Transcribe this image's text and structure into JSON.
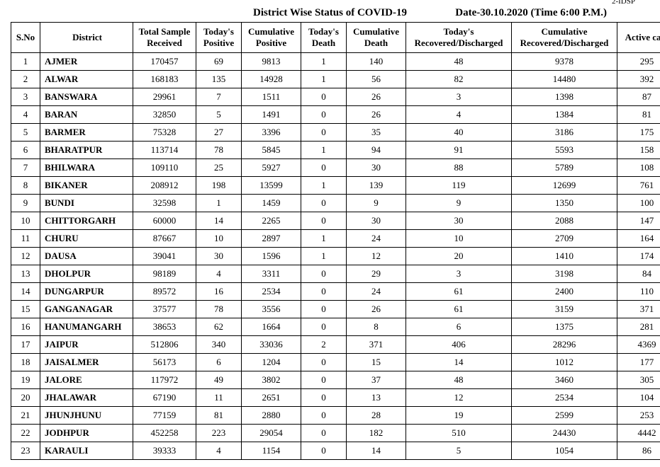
{
  "header": {
    "code": "2-IDSP",
    "title": "District Wise Status of  COVID-19",
    "date": "Date-30.10.2020 (Time 6:00 P.M.)"
  },
  "columns": {
    "sno": "S.No",
    "district": "District",
    "sample": "Total Sample Received",
    "tpos": "Today's Positive",
    "cpos": "Cumulative Positive",
    "tdth": "Today's Death",
    "cdth": "Cumulative Death",
    "trec": "Today's Recovered/Discharged",
    "crec": "Cumulative Recovered/Discharged",
    "act": "Active  case"
  },
  "rows": [
    {
      "sno": "1",
      "district": "AJMER",
      "sample": "170457",
      "tpos": "69",
      "cpos": "9813",
      "tdth": "1",
      "cdth": "140",
      "trec": "48",
      "crec": "9378",
      "act": "295"
    },
    {
      "sno": "2",
      "district": "ALWAR",
      "sample": "168183",
      "tpos": "135",
      "cpos": "14928",
      "tdth": "1",
      "cdth": "56",
      "trec": "82",
      "crec": "14480",
      "act": "392"
    },
    {
      "sno": "3",
      "district": "BANSWARA",
      "sample": "29961",
      "tpos": "7",
      "cpos": "1511",
      "tdth": "0",
      "cdth": "26",
      "trec": "3",
      "crec": "1398",
      "act": "87"
    },
    {
      "sno": "4",
      "district": "BARAN",
      "sample": "32850",
      "tpos": "5",
      "cpos": "1491",
      "tdth": "0",
      "cdth": "26",
      "trec": "4",
      "crec": "1384",
      "act": "81"
    },
    {
      "sno": "5",
      "district": "BARMER",
      "sample": "75328",
      "tpos": "27",
      "cpos": "3396",
      "tdth": "0",
      "cdth": "35",
      "trec": "40",
      "crec": "3186",
      "act": "175"
    },
    {
      "sno": "6",
      "district": "BHARATPUR",
      "sample": "113714",
      "tpos": "78",
      "cpos": "5845",
      "tdth": "1",
      "cdth": "94",
      "trec": "91",
      "crec": "5593",
      "act": "158"
    },
    {
      "sno": "7",
      "district": "BHILWARA",
      "sample": "109110",
      "tpos": "25",
      "cpos": "5927",
      "tdth": "0",
      "cdth": "30",
      "trec": "88",
      "crec": "5789",
      "act": "108"
    },
    {
      "sno": "8",
      "district": "BIKANER",
      "sample": "208912",
      "tpos": "198",
      "cpos": "13599",
      "tdth": "1",
      "cdth": "139",
      "trec": "119",
      "crec": "12699",
      "act": "761"
    },
    {
      "sno": "9",
      "district": "BUNDI",
      "sample": "32598",
      "tpos": "1",
      "cpos": "1459",
      "tdth": "0",
      "cdth": "9",
      "trec": "9",
      "crec": "1350",
      "act": "100"
    },
    {
      "sno": "10",
      "district": "CHITTORGARH",
      "sample": "60000",
      "tpos": "14",
      "cpos": "2265",
      "tdth": "0",
      "cdth": "30",
      "trec": "30",
      "crec": "2088",
      "act": "147"
    },
    {
      "sno": "11",
      "district": "CHURU",
      "sample": "87667",
      "tpos": "10",
      "cpos": "2897",
      "tdth": "1",
      "cdth": "24",
      "trec": "10",
      "crec": "2709",
      "act": "164"
    },
    {
      "sno": "12",
      "district": "DAUSA",
      "sample": "39041",
      "tpos": "30",
      "cpos": "1596",
      "tdth": "1",
      "cdth": "12",
      "trec": "20",
      "crec": "1410",
      "act": "174"
    },
    {
      "sno": "13",
      "district": "DHOLPUR",
      "sample": "98189",
      "tpos": "4",
      "cpos": "3311",
      "tdth": "0",
      "cdth": "29",
      "trec": "3",
      "crec": "3198",
      "act": "84"
    },
    {
      "sno": "14",
      "district": "DUNGARPUR",
      "sample": "89572",
      "tpos": "16",
      "cpos": "2534",
      "tdth": "0",
      "cdth": "24",
      "trec": "61",
      "crec": "2400",
      "act": "110"
    },
    {
      "sno": "15",
      "district": "GANGANAGAR",
      "sample": "37577",
      "tpos": "78",
      "cpos": "3556",
      "tdth": "0",
      "cdth": "26",
      "trec": "61",
      "crec": "3159",
      "act": "371"
    },
    {
      "sno": "16",
      "district": "HANUMANGARH",
      "sample": "38653",
      "tpos": "62",
      "cpos": "1664",
      "tdth": "0",
      "cdth": "8",
      "trec": "6",
      "crec": "1375",
      "act": "281"
    },
    {
      "sno": "17",
      "district": "JAIPUR",
      "sample": "512806",
      "tpos": "340",
      "cpos": "33036",
      "tdth": "2",
      "cdth": "371",
      "trec": "406",
      "crec": "28296",
      "act": "4369"
    },
    {
      "sno": "18",
      "district": "JAISALMER",
      "sample": "56173",
      "tpos": "6",
      "cpos": "1204",
      "tdth": "0",
      "cdth": "15",
      "trec": "14",
      "crec": "1012",
      "act": "177"
    },
    {
      "sno": "19",
      "district": "JALORE",
      "sample": "117972",
      "tpos": "49",
      "cpos": "3802",
      "tdth": "0",
      "cdth": "37",
      "trec": "48",
      "crec": "3460",
      "act": "305"
    },
    {
      "sno": "20",
      "district": "JHALAWAR",
      "sample": "67190",
      "tpos": "11",
      "cpos": "2651",
      "tdth": "0",
      "cdth": "13",
      "trec": "12",
      "crec": "2534",
      "act": "104"
    },
    {
      "sno": "21",
      "district": "JHUNJHUNU",
      "sample": "77159",
      "tpos": "81",
      "cpos": "2880",
      "tdth": "0",
      "cdth": "28",
      "trec": "19",
      "crec": "2599",
      "act": "253"
    },
    {
      "sno": "22",
      "district": "JODHPUR",
      "sample": "452258",
      "tpos": "223",
      "cpos": "29054",
      "tdth": "0",
      "cdth": "182",
      "trec": "510",
      "crec": "24430",
      "act": "4442"
    },
    {
      "sno": "23",
      "district": "KARAULI",
      "sample": "39333",
      "tpos": "4",
      "cpos": "1154",
      "tdth": "0",
      "cdth": "14",
      "trec": "5",
      "crec": "1054",
      "act": "86"
    }
  ]
}
